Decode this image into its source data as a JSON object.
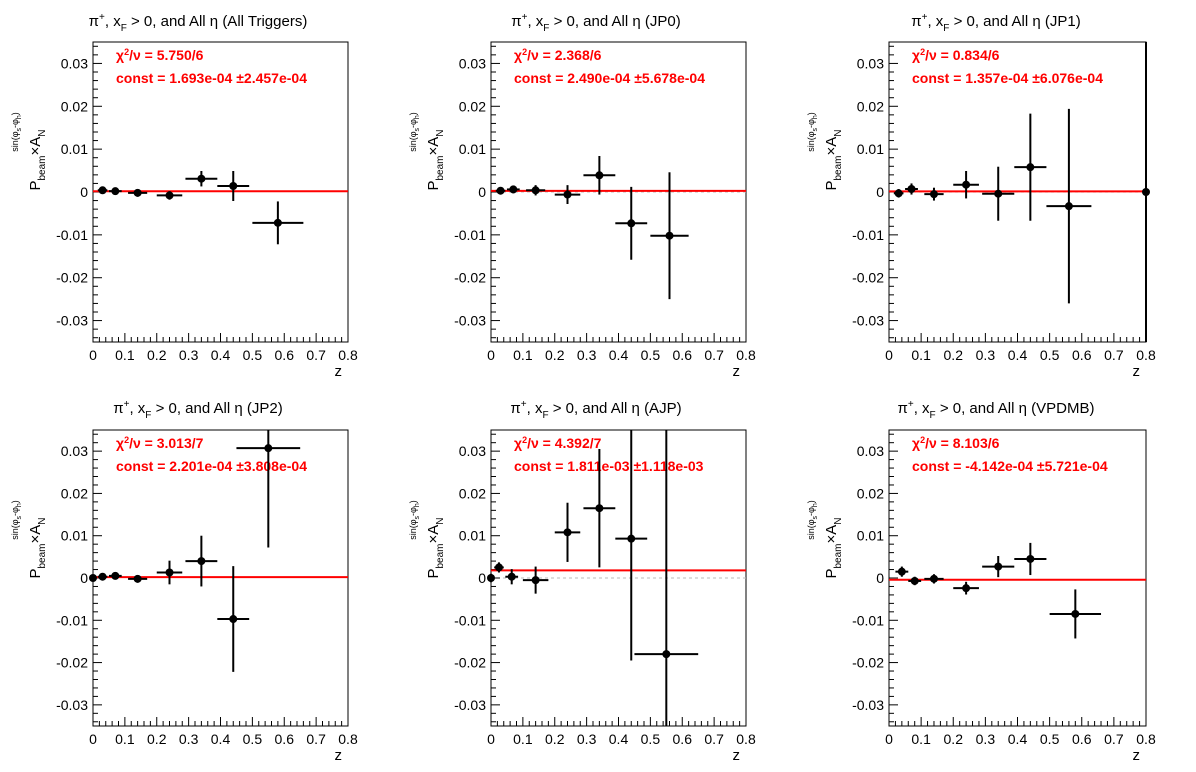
{
  "colors": {
    "fit": "#ff0000",
    "stat_text": "#ff0000",
    "axis": "#000000",
    "data": "#000000",
    "zero_line": "#bbbbbb"
  },
  "chart_data": [
    {
      "type": "scatter",
      "title": {
        "base": "π",
        "sup": "+",
        "mid": ", x",
        "sub": "F",
        "rest": " > 0, and All  η (All Triggers)"
      },
      "stats": {
        "chi_label": "χ",
        "chi_sup": "2",
        "chi_rest": "/ν = 5.750/6",
        "const": "const = 1.693e-04  ±2.457e-04"
      },
      "xlabel": "z",
      "ylabel": {
        "p": "P",
        "p_sub": "beam",
        "a": "×A",
        "a_sub": "N",
        "a_sup": "sin(φ",
        "sup_s": "s",
        "sup_mid": "-φ",
        "sup_h": "h",
        "sup_end": ")"
      },
      "xlim": [
        0,
        0.8
      ],
      "ylim": [
        -0.035,
        0.035
      ],
      "xticks": [
        "0",
        "0.1",
        "0.2",
        "0.3",
        "0.4",
        "0.5",
        "0.6",
        "0.7",
        "0.8"
      ],
      "yticks": [
        "-0.03",
        "-0.02",
        "-0.01",
        "0",
        "0.01",
        "0.02",
        "0.03"
      ],
      "fit": 0.00017,
      "points": [
        {
          "x": 0.03,
          "y": 0.0004,
          "xe": 0.015,
          "ye": 0.0008
        },
        {
          "x": 0.07,
          "y": 0.0002,
          "xe": 0.02,
          "ye": 0.0008
        },
        {
          "x": 0.14,
          "y": -0.0002,
          "xe": 0.03,
          "ye": 0.0009
        },
        {
          "x": 0.24,
          "y": -0.0008,
          "xe": 0.04,
          "ye": 0.001
        },
        {
          "x": 0.34,
          "y": 0.0031,
          "xe": 0.05,
          "ye": 0.0018
        },
        {
          "x": 0.44,
          "y": 0.0014,
          "xe": 0.05,
          "ye": 0.0035
        },
        {
          "x": 0.58,
          "y": -0.0072,
          "xe": 0.08,
          "ye": 0.005
        }
      ]
    },
    {
      "type": "scatter",
      "title": {
        "base": "π",
        "sup": "+",
        "mid": ", x",
        "sub": "F",
        "rest": " > 0, and All η (JP0)"
      },
      "stats": {
        "chi_label": "χ",
        "chi_sup": "2",
        "chi_rest": "/ν = 2.368/6",
        "const": "const = 2.490e-04  ±5.678e-04"
      },
      "xlabel": "z",
      "ylabel": {
        "p": "P",
        "p_sub": "beam",
        "a": "×A",
        "a_sub": "N",
        "a_sup": "sin(φ",
        "sup_s": "s",
        "sup_mid": "-φ",
        "sup_h": "h",
        "sup_end": ")"
      },
      "xlim": [
        0,
        0.8
      ],
      "ylim": [
        -0.035,
        0.035
      ],
      "xticks": [
        "0",
        "0.1",
        "0.2",
        "0.3",
        "0.4",
        "0.5",
        "0.6",
        "0.7",
        "0.8"
      ],
      "yticks": [
        "-0.03",
        "-0.02",
        "-0.01",
        "0",
        "0.01",
        "0.02",
        "0.03"
      ],
      "fit": 0.00025,
      "zero_line": true,
      "points": [
        {
          "x": 0.03,
          "y": 0.0003,
          "xe": 0.015,
          "ye": 0.0008
        },
        {
          "x": 0.07,
          "y": 0.0006,
          "xe": 0.02,
          "ye": 0.0009
        },
        {
          "x": 0.14,
          "y": 0.0004,
          "xe": 0.03,
          "ye": 0.0012
        },
        {
          "x": 0.24,
          "y": -0.0006,
          "xe": 0.04,
          "ye": 0.0022
        },
        {
          "x": 0.34,
          "y": 0.0039,
          "xe": 0.05,
          "ye": 0.0045
        },
        {
          "x": 0.44,
          "y": -0.0073,
          "xe": 0.05,
          "ye": 0.0085
        },
        {
          "x": 0.56,
          "y": -0.0102,
          "xe": 0.06,
          "ye": 0.0148
        }
      ]
    },
    {
      "type": "scatter",
      "title": {
        "base": "π",
        "sup": "+",
        "mid": ", x",
        "sub": "F",
        "rest": " > 0, and All η (JP1)"
      },
      "stats": {
        "chi_label": "χ",
        "chi_sup": "2",
        "chi_rest": "/ν = 0.834/6",
        "const": "const = 1.357e-04  ±6.076e-04"
      },
      "xlabel": "z",
      "ylabel": {
        "p": "P",
        "p_sub": "beam",
        "a": "×A",
        "a_sub": "N",
        "a_sup": "sin(φ",
        "sup_s": "s",
        "sup_mid": "-φ",
        "sup_h": "h",
        "sup_end": ")"
      },
      "xlim": [
        0,
        0.8
      ],
      "ylim": [
        -0.035,
        0.035
      ],
      "xticks": [
        "0",
        "0.1",
        "0.2",
        "0.3",
        "0.4",
        "0.5",
        "0.6",
        "0.7",
        "0.8"
      ],
      "yticks": [
        "-0.03",
        "-0.02",
        "-0.01",
        "0",
        "0.01",
        "0.02",
        "0.03"
      ],
      "fit": 0.00014,
      "zero_line": true,
      "points": [
        {
          "x": 0.03,
          "y": -0.0003,
          "xe": 0.015,
          "ye": 0.001
        },
        {
          "x": 0.07,
          "y": 0.0007,
          "xe": 0.02,
          "ye": 0.0013
        },
        {
          "x": 0.14,
          "y": -0.0005,
          "xe": 0.03,
          "ye": 0.0015
        },
        {
          "x": 0.24,
          "y": 0.0017,
          "xe": 0.04,
          "ye": 0.0032
        },
        {
          "x": 0.34,
          "y": -0.0004,
          "xe": 0.05,
          "ye": 0.0063
        },
        {
          "x": 0.44,
          "y": 0.0058,
          "xe": 0.05,
          "ye": 0.0125
        },
        {
          "x": 0.56,
          "y": -0.0033,
          "xe": 0.07,
          "ye": 0.0227
        },
        {
          "x": 0.8,
          "y": 0.0,
          "xe": 0.0,
          "ye": 0.06
        }
      ]
    },
    {
      "type": "scatter",
      "title": {
        "base": "π",
        "sup": "+",
        "mid": ", x",
        "sub": "F",
        "rest": " > 0, and All η (JP2)"
      },
      "stats": {
        "chi_label": "χ",
        "chi_sup": "2",
        "chi_rest": "/ν = 3.013/7",
        "const": "const = 2.201e-04  ±3.808e-04"
      },
      "xlabel": "z",
      "ylabel": {
        "p": "P",
        "p_sub": "beam",
        "a": "×A",
        "a_sub": "N",
        "a_sup": "sin(φ",
        "sup_s": "s",
        "sup_mid": "-φ",
        "sup_h": "h",
        "sup_end": ")"
      },
      "xlim": [
        0,
        0.8
      ],
      "ylim": [
        -0.035,
        0.035
      ],
      "xticks": [
        "0",
        "0.1",
        "0.2",
        "0.3",
        "0.4",
        "0.5",
        "0.6",
        "0.7",
        "0.8"
      ],
      "yticks": [
        "-0.03",
        "-0.02",
        "-0.01",
        "0",
        "0.01",
        "0.02",
        "0.03"
      ],
      "fit": 0.00022,
      "points": [
        {
          "x": 0.0,
          "y": 0.0,
          "xe": 0.005,
          "ye": 0.0005
        },
        {
          "x": 0.03,
          "y": 0.0003,
          "xe": 0.015,
          "ye": 0.0006
        },
        {
          "x": 0.07,
          "y": 0.0005,
          "xe": 0.02,
          "ye": 0.0007
        },
        {
          "x": 0.14,
          "y": -0.0002,
          "xe": 0.03,
          "ye": 0.0009
        },
        {
          "x": 0.24,
          "y": 0.0013,
          "xe": 0.04,
          "ye": 0.0028
        },
        {
          "x": 0.34,
          "y": 0.004,
          "xe": 0.05,
          "ye": 0.006
        },
        {
          "x": 0.44,
          "y": -0.0097,
          "xe": 0.05,
          "ye": 0.0125
        },
        {
          "x": 0.55,
          "y": 0.0307,
          "xe": 0.1,
          "ye": 0.0235
        }
      ]
    },
    {
      "type": "scatter",
      "title": {
        "base": "π",
        "sup": "+",
        "mid": ", x",
        "sub": "F",
        "rest": " > 0, and All η (AJP)"
      },
      "stats": {
        "chi_label": "χ",
        "chi_sup": "2",
        "chi_rest": "/ν = 4.392/7",
        "const": "const = 1.811e-03  ±1.118e-03"
      },
      "xlabel": "z",
      "ylabel": {
        "p": "P",
        "p_sub": "beam",
        "a": "×A",
        "a_sub": "N",
        "a_sup": "sin(φ",
        "sup_s": "s",
        "sup_mid": "-φ",
        "sup_h": "h",
        "sup_end": ")"
      },
      "xlim": [
        0,
        0.8
      ],
      "ylim": [
        -0.035,
        0.035
      ],
      "xticks": [
        "0",
        "0.1",
        "0.2",
        "0.3",
        "0.4",
        "0.5",
        "0.6",
        "0.7",
        "0.8"
      ],
      "yticks": [
        "-0.03",
        "-0.02",
        "-0.01",
        "0",
        "0.01",
        "0.02",
        "0.03"
      ],
      "fit": 0.0018,
      "zero_line": true,
      "points": [
        {
          "x": 0.0,
          "y": 0.0,
          "xe": 0.005,
          "ye": 0.001
        },
        {
          "x": 0.025,
          "y": 0.0025,
          "xe": 0.015,
          "ye": 0.0012
        },
        {
          "x": 0.065,
          "y": 0.0003,
          "xe": 0.02,
          "ye": 0.0018
        },
        {
          "x": 0.14,
          "y": -0.0005,
          "xe": 0.04,
          "ye": 0.0032
        },
        {
          "x": 0.24,
          "y": 0.0108,
          "xe": 0.04,
          "ye": 0.007
        },
        {
          "x": 0.34,
          "y": 0.0165,
          "xe": 0.05,
          "ye": 0.014
        },
        {
          "x": 0.44,
          "y": 0.0093,
          "xe": 0.05,
          "ye": 0.0288
        },
        {
          "x": 0.55,
          "y": -0.018,
          "xe": 0.1,
          "ye": 0.053
        }
      ]
    },
    {
      "type": "scatter",
      "title": {
        "base": "π",
        "sup": "+",
        "mid": ", x",
        "sub": "F",
        "rest": " > 0, and All  η (VPDMB)"
      },
      "stats": {
        "chi_label": "χ",
        "chi_sup": "2",
        "chi_rest": "/ν = 8.103/6",
        "const": "const = -4.142e-04  ±5.721e-04"
      },
      "xlabel": "z",
      "ylabel": {
        "p": "P",
        "p_sub": "beam",
        "a": "×A",
        "a_sub": "N",
        "a_sup": "sin(φ",
        "sup_s": "s",
        "sup_mid": "-φ",
        "sup_h": "h",
        "sup_end": ")"
      },
      "xlim": [
        0,
        0.8
      ],
      "ylim": [
        -0.035,
        0.035
      ],
      "xticks": [
        "0",
        "0.1",
        "0.2",
        "0.3",
        "0.4",
        "0.5",
        "0.6",
        "0.7",
        "0.8"
      ],
      "yticks": [
        "-0.03",
        "-0.02",
        "-0.01",
        "0",
        "0.01",
        "0.02",
        "0.03"
      ],
      "fit": -0.00041,
      "points": [
        {
          "x": 0.04,
          "y": 0.0015,
          "xe": 0.02,
          "ye": 0.0012
        },
        {
          "x": 0.08,
          "y": -0.0007,
          "xe": 0.02,
          "ye": 0.001
        },
        {
          "x": 0.14,
          "y": -0.0002,
          "xe": 0.03,
          "ye": 0.0011
        },
        {
          "x": 0.24,
          "y": -0.0024,
          "xe": 0.04,
          "ye": 0.0015
        },
        {
          "x": 0.34,
          "y": 0.0027,
          "xe": 0.05,
          "ye": 0.0025
        },
        {
          "x": 0.44,
          "y": 0.0045,
          "xe": 0.05,
          "ye": 0.0038
        },
        {
          "x": 0.58,
          "y": -0.0085,
          "xe": 0.08,
          "ye": 0.0058
        }
      ]
    }
  ]
}
